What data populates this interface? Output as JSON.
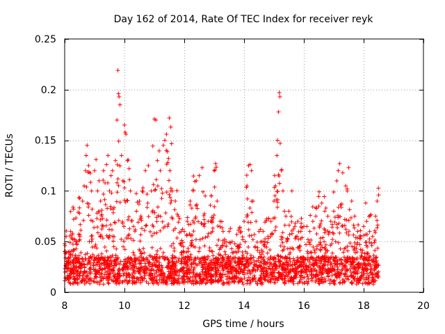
{
  "chart_data": {
    "type": "scatter",
    "title": "Day 162 of 2014, Rate Of TEC Index for receiver reyk",
    "xlabel": "GPS time / hours",
    "ylabel": "ROTI / TECUs",
    "xlim": [
      8,
      20
    ],
    "ylim": [
      0,
      0.25
    ],
    "grid": true,
    "marker": "+",
    "color": "#ff0000",
    "xticks": [
      8,
      10,
      12,
      14,
      16,
      18,
      20
    ],
    "xtick_labels": [
      "8",
      "10",
      "12",
      "14",
      "16",
      "18",
      "20"
    ],
    "yticks": [
      0,
      0.05,
      0.1,
      0.15,
      0.2,
      0.25
    ],
    "ytick_labels": [
      "0",
      "0.05",
      "0.1",
      "0.15",
      "0.2",
      "0.25"
    ],
    "x_data_range": [
      8.0,
      18.5
    ],
    "series": [
      {
        "name": "ROTI",
        "points": [
          [
            8.0,
            0.04
          ],
          [
            8.05,
            0.055
          ],
          [
            8.1,
            0.03
          ],
          [
            8.2,
            0.06
          ],
          [
            8.3,
            0.072
          ],
          [
            8.4,
            0.05
          ],
          [
            8.45,
            0.079
          ],
          [
            8.5,
            0.078
          ],
          [
            8.6,
            0.09
          ],
          [
            8.65,
            0.105
          ],
          [
            8.7,
            0.12
          ],
          [
            8.72,
            0.135
          ],
          [
            8.75,
            0.145
          ],
          [
            8.8,
            0.125
          ],
          [
            8.9,
            0.1
          ],
          [
            9.0,
            0.12
          ],
          [
            9.05,
            0.131
          ],
          [
            9.1,
            0.1
          ],
          [
            9.15,
            0.11
          ],
          [
            9.2,
            0.09
          ],
          [
            9.3,
            0.12
          ],
          [
            9.4,
            0.126
          ],
          [
            9.45,
            0.135
          ],
          [
            9.5,
            0.1
          ],
          [
            9.55,
            0.115
          ],
          [
            9.6,
            0.12
          ],
          [
            9.7,
            0.13
          ],
          [
            9.75,
            0.17
          ],
          [
            9.78,
            0.219
          ],
          [
            9.8,
            0.196
          ],
          [
            9.82,
            0.193
          ],
          [
            9.85,
            0.185
          ],
          [
            9.9,
            0.135
          ],
          [
            9.95,
            0.11
          ],
          [
            10.0,
            0.165
          ],
          [
            10.02,
            0.158
          ],
          [
            10.05,
            0.156
          ],
          [
            10.1,
            0.13
          ],
          [
            10.2,
            0.1
          ],
          [
            10.3,
            0.065
          ],
          [
            10.4,
            0.08
          ],
          [
            10.5,
            0.09
          ],
          [
            10.6,
            0.1
          ],
          [
            10.7,
            0.12
          ],
          [
            10.8,
            0.125
          ],
          [
            10.9,
            0.1
          ],
          [
            11.0,
            0.171
          ],
          [
            11.05,
            0.17
          ],
          [
            11.1,
            0.13
          ],
          [
            11.2,
            0.12
          ],
          [
            11.3,
            0.145
          ],
          [
            11.35,
            0.15
          ],
          [
            11.4,
            0.14
          ],
          [
            11.45,
            0.128
          ],
          [
            11.5,
            0.172
          ],
          [
            11.55,
            0.163
          ],
          [
            11.6,
            0.1
          ],
          [
            11.7,
            0.09
          ],
          [
            11.8,
            0.075
          ],
          [
            11.9,
            0.06
          ],
          [
            12.0,
            0.06
          ],
          [
            12.1,
            0.07
          ],
          [
            12.2,
            0.09
          ],
          [
            12.3,
            0.1
          ],
          [
            12.4,
            0.11
          ],
          [
            12.5,
            0.115
          ],
          [
            12.6,
            0.123
          ],
          [
            12.7,
            0.095
          ],
          [
            12.8,
            0.07
          ],
          [
            12.9,
            0.095
          ],
          [
            13.0,
            0.12
          ],
          [
            13.05,
            0.127
          ],
          [
            13.1,
            0.09
          ],
          [
            13.2,
            0.07
          ],
          [
            13.3,
            0.06
          ],
          [
            13.4,
            0.05
          ],
          [
            13.5,
            0.06
          ],
          [
            13.6,
            0.05
          ],
          [
            13.7,
            0.04
          ],
          [
            13.8,
            0.045
          ],
          [
            13.9,
            0.06
          ],
          [
            14.0,
            0.07
          ],
          [
            14.1,
            0.105
          ],
          [
            14.15,
            0.125
          ],
          [
            14.2,
            0.126
          ],
          [
            14.25,
            0.12
          ],
          [
            14.3,
            0.09
          ],
          [
            14.4,
            0.07
          ],
          [
            14.5,
            0.06
          ],
          [
            14.6,
            0.05
          ],
          [
            14.7,
            0.05
          ],
          [
            14.8,
            0.055
          ],
          [
            14.9,
            0.07
          ],
          [
            15.0,
            0.09
          ],
          [
            15.05,
            0.105
          ],
          [
            15.1,
            0.135
          ],
          [
            15.12,
            0.15
          ],
          [
            15.15,
            0.178
          ],
          [
            15.18,
            0.197
          ],
          [
            15.2,
            0.193
          ],
          [
            15.25,
            0.12
          ],
          [
            15.3,
            0.1
          ],
          [
            15.35,
            0.08
          ],
          [
            15.4,
            0.075
          ],
          [
            15.5,
            0.08
          ],
          [
            15.6,
            0.1
          ],
          [
            15.7,
            0.065
          ],
          [
            15.8,
            0.07
          ],
          [
            15.9,
            0.06
          ],
          [
            16.0,
            0.065
          ],
          [
            16.1,
            0.065
          ],
          [
            16.2,
            0.06
          ],
          [
            16.3,
            0.07
          ],
          [
            16.4,
            0.075
          ],
          [
            16.5,
            0.085
          ],
          [
            16.6,
            0.088
          ],
          [
            16.7,
            0.08
          ],
          [
            16.8,
            0.075
          ],
          [
            16.9,
            0.07
          ],
          [
            17.0,
            0.08
          ],
          [
            17.1,
            0.11
          ],
          [
            17.15,
            0.12
          ],
          [
            17.2,
            0.127
          ],
          [
            17.3,
            0.118
          ],
          [
            17.4,
            0.105
          ],
          [
            17.45,
            0.1
          ],
          [
            17.5,
            0.123
          ],
          [
            17.6,
            0.09
          ],
          [
            17.7,
            0.075
          ],
          [
            17.8,
            0.06
          ],
          [
            17.9,
            0.055
          ],
          [
            18.0,
            0.065
          ],
          [
            18.1,
            0.07
          ],
          [
            18.2,
            0.06
          ],
          [
            18.3,
            0.055
          ],
          [
            18.4,
            0.075
          ],
          [
            18.45,
            0.09
          ],
          [
            18.5,
            0.096
          ]
        ]
      }
    ]
  }
}
